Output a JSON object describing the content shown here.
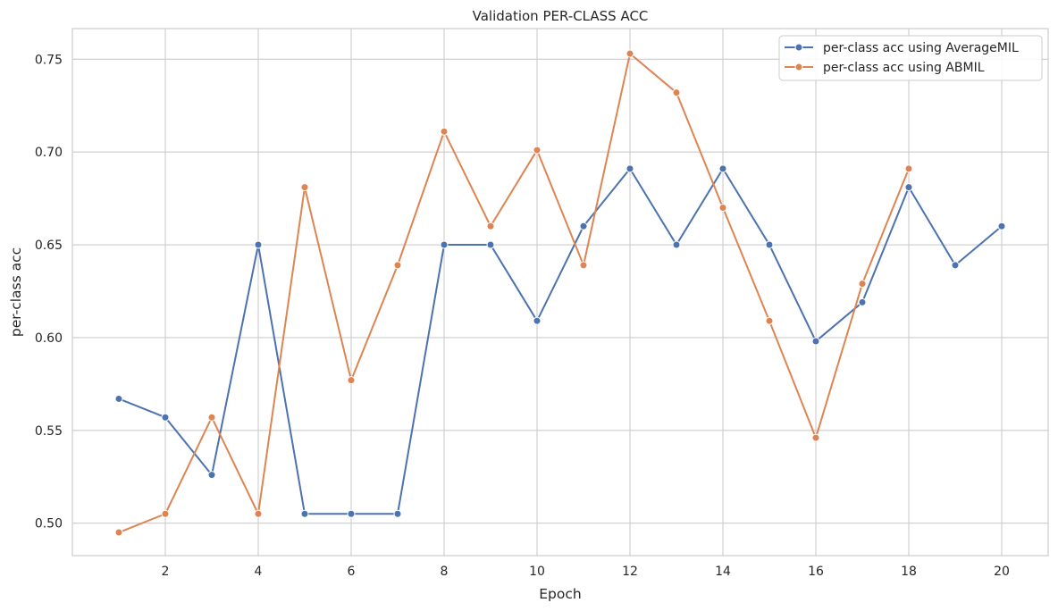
{
  "chart_data": {
    "type": "line",
    "title": "Validation PER-CLASS ACC",
    "xlabel": "Epoch",
    "ylabel": "per-class acc",
    "x": [
      1,
      2,
      3,
      4,
      5,
      6,
      7,
      8,
      9,
      10,
      11,
      12,
      13,
      14,
      15,
      16,
      17,
      18,
      19,
      20
    ],
    "xticks": [
      2,
      4,
      6,
      8,
      10,
      12,
      14,
      16,
      18,
      20
    ],
    "xtick_labels": [
      "2",
      "4",
      "6",
      "8",
      "10",
      "12",
      "14",
      "16",
      "18",
      "20"
    ],
    "yticks": [
      0.5,
      0.55,
      0.6,
      0.65,
      0.7,
      0.75
    ],
    "ytick_labels": [
      "0.50",
      "0.55",
      "0.60",
      "0.65",
      "0.70",
      "0.75"
    ],
    "xlim": [
      0,
      21
    ],
    "ylim": [
      0.4825,
      0.7665
    ],
    "grid": true,
    "legend_position": "top-right",
    "series": [
      {
        "name": "per-class acc using AverageMIL",
        "color": "#4c72b0",
        "x": [
          1,
          2,
          3,
          4,
          5,
          6,
          7,
          8,
          9,
          10,
          11,
          12,
          13,
          14,
          15,
          16,
          17,
          18,
          19,
          20
        ],
        "values": [
          0.567,
          0.557,
          0.526,
          0.65,
          0.505,
          0.505,
          0.505,
          0.65,
          0.65,
          0.609,
          0.66,
          0.691,
          0.65,
          0.691,
          0.65,
          0.598,
          0.619,
          0.681,
          0.639,
          0.66
        ]
      },
      {
        "name": "per-class acc using ABMIL",
        "color": "#dd8452",
        "x": [
          1,
          2,
          3,
          4,
          5,
          6,
          7,
          8,
          9,
          10,
          11,
          12,
          13,
          14,
          15,
          16,
          17,
          18
        ],
        "values": [
          0.495,
          0.505,
          0.557,
          0.505,
          0.681,
          0.577,
          0.639,
          0.711,
          0.66,
          0.701,
          0.639,
          0.753,
          0.732,
          0.67,
          0.609,
          0.546,
          0.629,
          0.691
        ]
      }
    ]
  }
}
